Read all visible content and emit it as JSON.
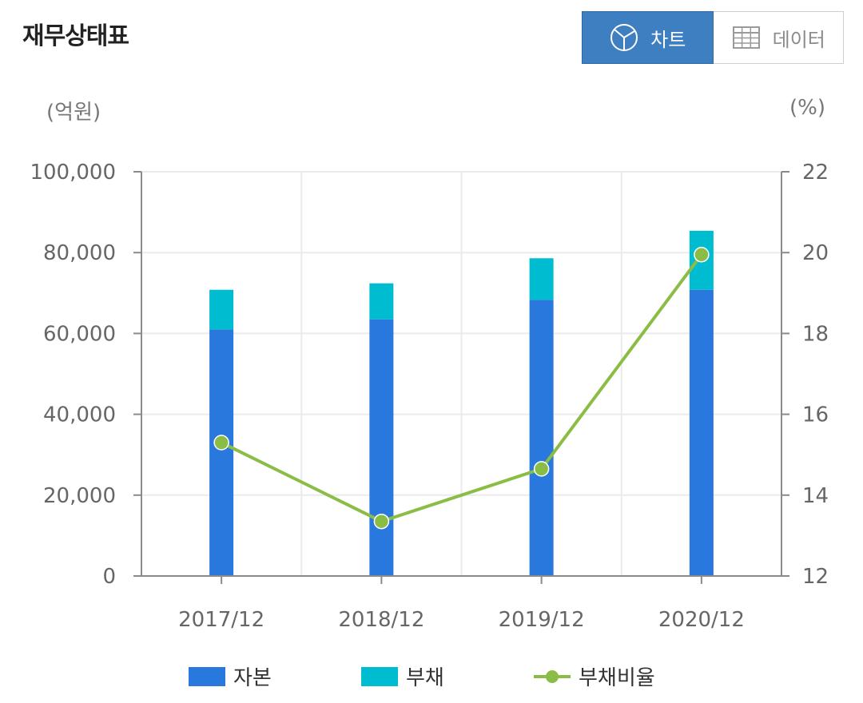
{
  "header": {
    "title": "재무상태표",
    "chart_label": "차트",
    "data_label": "데이터",
    "chart_icon": "pie-chart-icon",
    "data_icon": "table-grid-icon"
  },
  "units": {
    "left": "(억원)",
    "right": "(%)"
  },
  "colors": {
    "capital": "#2878dd",
    "debt": "#00bcd0",
    "ratio": "#8bbd46",
    "toggle_active": "#3d7fc1"
  },
  "chart_data": {
    "type": "bar",
    "stacked": true,
    "categories": [
      "2017/12",
      "2018/12",
      "2019/12",
      "2020/12"
    ],
    "series": [
      {
        "name": "자본",
        "type": "bar",
        "axis": "left",
        "values": [
          61000,
          63500,
          68300,
          70800
        ]
      },
      {
        "name": "부채",
        "type": "bar",
        "axis": "left",
        "values": [
          9800,
          8900,
          10300,
          14600
        ]
      },
      {
        "name": "부채비율",
        "type": "line",
        "axis": "right",
        "values": [
          15.3,
          13.35,
          14.65,
          19.95
        ]
      }
    ],
    "ylim": [
      0,
      100000
    ],
    "y_ticks": [
      "0",
      "20,000",
      "40,000",
      "60,000",
      "80,000",
      "100,000"
    ],
    "y2lim": [
      12,
      22
    ],
    "y2_ticks": [
      "12",
      "14",
      "16",
      "18",
      "20",
      "22"
    ],
    "ylabel": "(억원)",
    "y2label": "(%)",
    "grid": true,
    "legend_position": "bottom"
  }
}
